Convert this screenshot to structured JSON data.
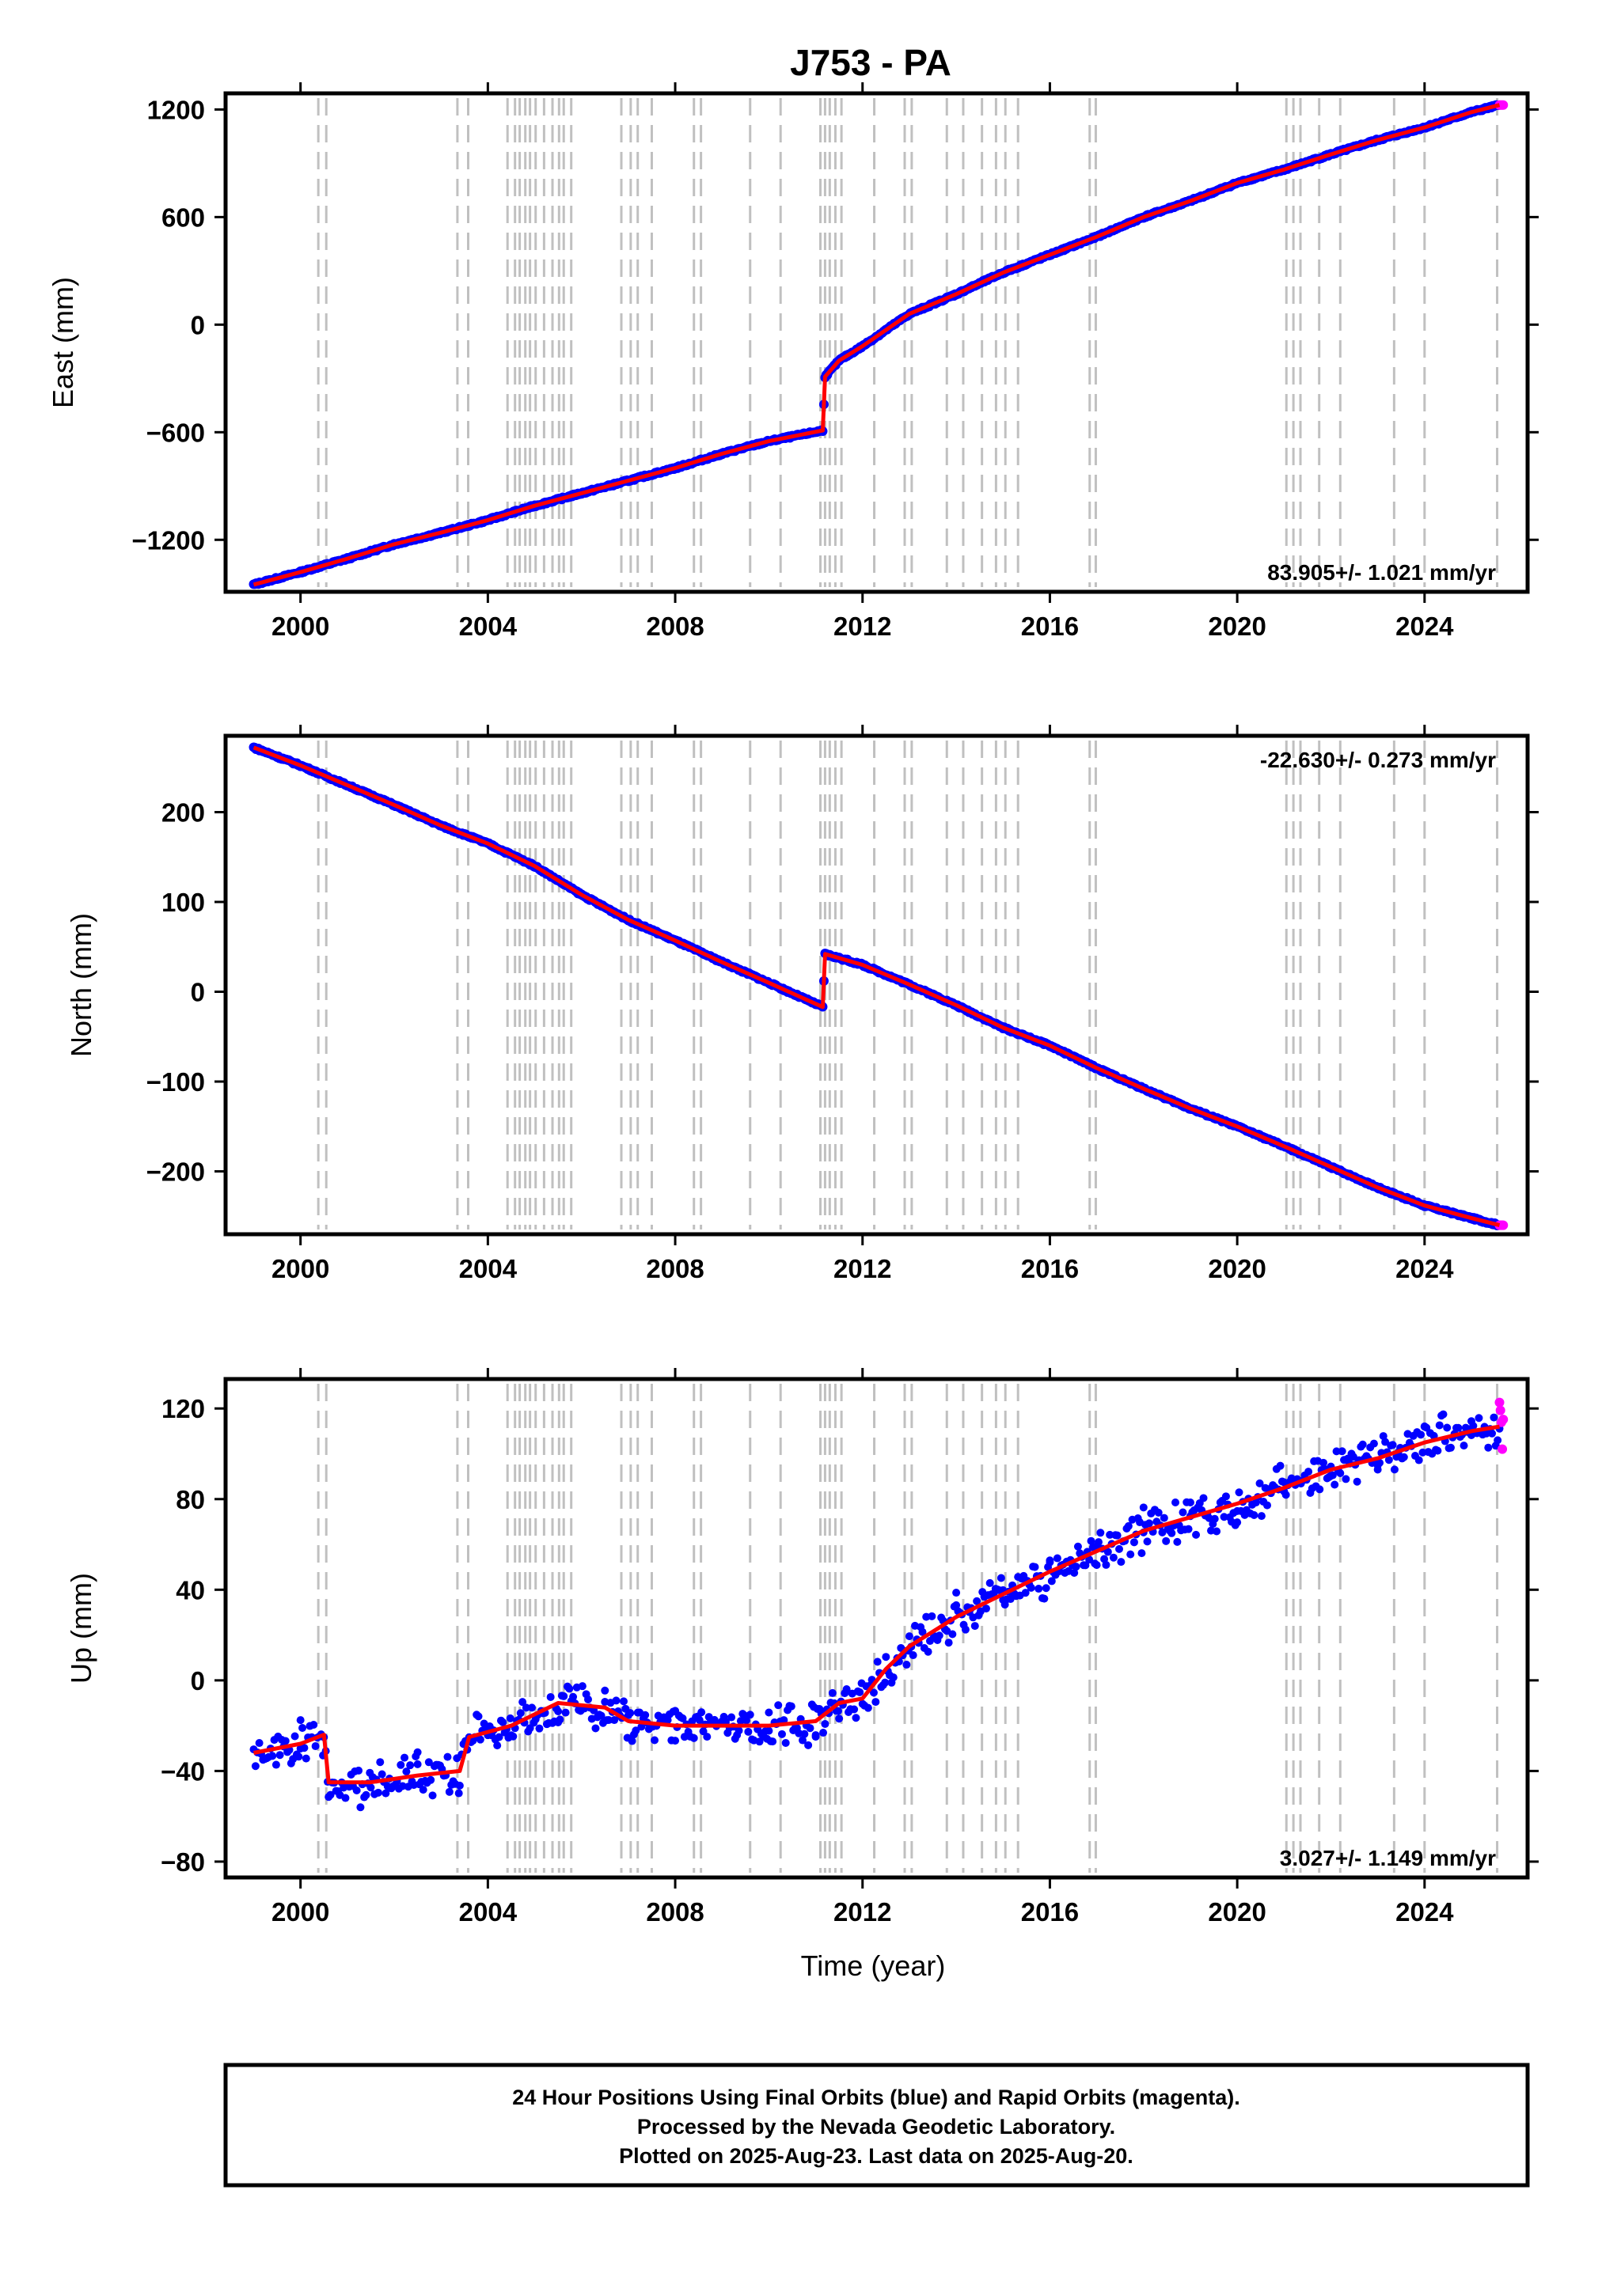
{
  "title": "J753 - PA",
  "xlabel": "Time (year)",
  "footer_lines": [
    "24 Hour Positions Using Final Orbits (blue) and Rapid Orbits (magenta).",
    "Processed by the Nevada Geodetic Laboratory.",
    "Plotted on 2025-Aug-23. Last data on 2025-Aug-20."
  ],
  "colors": {
    "final_points": "#0000ff",
    "rapid_points": "#ff00ff",
    "model": "#ff0000",
    "event_lines": "#c0c0c0",
    "frame": "#000000"
  },
  "x_ticks": [
    2000,
    2004,
    2008,
    2012,
    2016,
    2020,
    2024
  ],
  "event_years": [
    2000.38,
    2000.55,
    2003.35,
    2003.58,
    2004.42,
    2004.58,
    2004.68,
    2004.8,
    2004.9,
    2005.02,
    2005.2,
    2005.38,
    2005.52,
    2005.62,
    2005.78,
    2006.85,
    2007.05,
    2007.2,
    2007.5,
    2008.4,
    2008.55,
    2009.6,
    2010.25,
    2011.1,
    2011.2,
    2011.3,
    2011.42,
    2011.55,
    2012.25,
    2012.9,
    2013.05,
    2013.8,
    2014.15,
    2014.55,
    2014.85,
    2015.05,
    2015.32,
    2016.85,
    2016.98,
    2021.05,
    2021.2,
    2021.35,
    2021.75,
    2022.2,
    2023.35,
    2024.0,
    2025.55
  ],
  "chart_data": [
    {
      "type": "scatter",
      "ylabel": "East (mm)",
      "rate_label": "83.905+/- 1.021 mm/yr",
      "rate_position": "bottom-right",
      "xlim": [
        1998.4,
        2026.2
      ],
      "ylim": [
        -1490,
        1290
      ],
      "y_ticks": [
        -1200,
        -600,
        0,
        600,
        1200
      ],
      "series": [
        {
          "values": [
            {
              "x": 1999.0,
              "y": -1450
            },
            {
              "x": 2000.0,
              "y": -1380
            },
            {
              "x": 2001.0,
              "y": -1305
            },
            {
              "x": 2002.0,
              "y": -1225
            },
            {
              "x": 2003.0,
              "y": -1160
            },
            {
              "x": 2004.0,
              "y": -1090
            },
            {
              "x": 2005.0,
              "y": -1010
            },
            {
              "x": 2006.0,
              "y": -940
            },
            {
              "x": 2007.0,
              "y": -870
            },
            {
              "x": 2008.0,
              "y": -800
            },
            {
              "x": 2009.0,
              "y": -720
            },
            {
              "x": 2010.0,
              "y": -650
            },
            {
              "x": 2011.15,
              "y": -590
            },
            {
              "x": 2011.2,
              "y": -290
            },
            {
              "x": 2011.5,
              "y": -200
            },
            {
              "x": 2012.0,
              "y": -120
            },
            {
              "x": 2013.0,
              "y": 60
            },
            {
              "x": 2014.0,
              "y": 170
            },
            {
              "x": 2015.0,
              "y": 290
            },
            {
              "x": 2016.0,
              "y": 390
            },
            {
              "x": 2017.0,
              "y": 490
            },
            {
              "x": 2018.0,
              "y": 600
            },
            {
              "x": 2019.0,
              "y": 690
            },
            {
              "x": 2020.0,
              "y": 790
            },
            {
              "x": 2021.0,
              "y": 865
            },
            {
              "x": 2022.0,
              "y": 950
            },
            {
              "x": 2023.0,
              "y": 1030
            },
            {
              "x": 2024.0,
              "y": 1100
            },
            {
              "x": 2025.0,
              "y": 1185
            },
            {
              "x": 2025.6,
              "y": 1225
            }
          ]
        }
      ]
    },
    {
      "type": "scatter",
      "ylabel": "North (mm)",
      "rate_label": "-22.630+/- 0.273 mm/yr",
      "rate_position": "top-right",
      "xlim": [
        1998.4,
        2026.2
      ],
      "ylim": [
        -270,
        285
      ],
      "y_ticks": [
        -200,
        -100,
        0,
        100,
        200
      ],
      "series": [
        {
          "values": [
            {
              "x": 1999.0,
              "y": 272
            },
            {
              "x": 2000.0,
              "y": 252
            },
            {
              "x": 2001.0,
              "y": 230
            },
            {
              "x": 2002.0,
              "y": 208
            },
            {
              "x": 2003.0,
              "y": 185
            },
            {
              "x": 2004.0,
              "y": 165
            },
            {
              "x": 2005.0,
              "y": 140
            },
            {
              "x": 2006.0,
              "y": 108
            },
            {
              "x": 2007.0,
              "y": 80
            },
            {
              "x": 2008.0,
              "y": 57
            },
            {
              "x": 2009.0,
              "y": 33
            },
            {
              "x": 2010.0,
              "y": 10
            },
            {
              "x": 2011.15,
              "y": -17
            },
            {
              "x": 2011.2,
              "y": 42
            },
            {
              "x": 2012.0,
              "y": 30
            },
            {
              "x": 2013.0,
              "y": 8
            },
            {
              "x": 2014.0,
              "y": -15
            },
            {
              "x": 2015.0,
              "y": -40
            },
            {
              "x": 2016.0,
              "y": -60
            },
            {
              "x": 2017.0,
              "y": -85
            },
            {
              "x": 2018.0,
              "y": -108
            },
            {
              "x": 2019.0,
              "y": -130
            },
            {
              "x": 2020.0,
              "y": -150
            },
            {
              "x": 2021.0,
              "y": -172
            },
            {
              "x": 2022.0,
              "y": -195
            },
            {
              "x": 2023.0,
              "y": -218
            },
            {
              "x": 2024.0,
              "y": -238
            },
            {
              "x": 2025.0,
              "y": -252
            },
            {
              "x": 2025.6,
              "y": -260
            }
          ]
        }
      ]
    },
    {
      "type": "scatter",
      "ylabel": "Up (mm)",
      "rate_label": "3.027+/- 1.149 mm/yr",
      "rate_position": "bottom-right",
      "xlim": [
        1998.4,
        2026.2
      ],
      "ylim": [
        -87,
        133
      ],
      "y_ticks": [
        -80,
        -40,
        0,
        40,
        80,
        120
      ],
      "series": [
        {
          "values": [
            {
              "x": 1999.0,
              "y": -32
            },
            {
              "x": 2000.0,
              "y": -28
            },
            {
              "x": 2000.5,
              "y": -24
            },
            {
              "x": 2000.6,
              "y": -45
            },
            {
              "x": 2001.5,
              "y": -45
            },
            {
              "x": 2002.5,
              "y": -42
            },
            {
              "x": 2003.4,
              "y": -40
            },
            {
              "x": 2003.6,
              "y": -25
            },
            {
              "x": 2004.5,
              "y": -20
            },
            {
              "x": 2005.5,
              "y": -10
            },
            {
              "x": 2006.5,
              "y": -12
            },
            {
              "x": 2007.0,
              "y": -18
            },
            {
              "x": 2008.0,
              "y": -20
            },
            {
              "x": 2009.0,
              "y": -20
            },
            {
              "x": 2010.0,
              "y": -20
            },
            {
              "x": 2011.0,
              "y": -18
            },
            {
              "x": 2011.5,
              "y": -10
            },
            {
              "x": 2012.0,
              "y": -8
            },
            {
              "x": 2012.5,
              "y": 5
            },
            {
              "x": 2013.0,
              "y": 15
            },
            {
              "x": 2014.0,
              "y": 28
            },
            {
              "x": 2015.0,
              "y": 38
            },
            {
              "x": 2016.0,
              "y": 48
            },
            {
              "x": 2017.0,
              "y": 57
            },
            {
              "x": 2018.0,
              "y": 66
            },
            {
              "x": 2019.0,
              "y": 72
            },
            {
              "x": 2020.0,
              "y": 78
            },
            {
              "x": 2021.0,
              "y": 85
            },
            {
              "x": 2022.0,
              "y": 93
            },
            {
              "x": 2023.0,
              "y": 98
            },
            {
              "x": 2024.0,
              "y": 105
            },
            {
              "x": 2025.0,
              "y": 110
            },
            {
              "x": 2025.6,
              "y": 112
            }
          ]
        }
      ]
    }
  ]
}
